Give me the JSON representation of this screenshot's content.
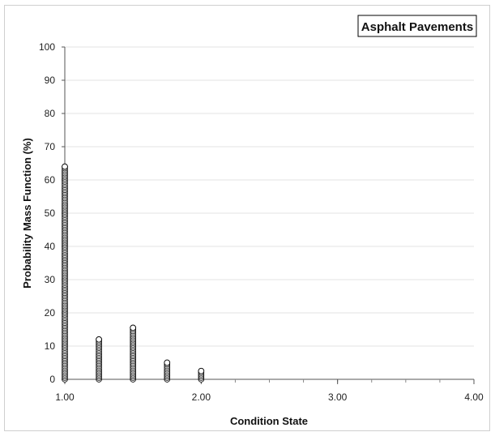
{
  "chart_data": {
    "type": "scatter",
    "title": "",
    "xlabel": "Condition State",
    "ylabel": "Probability Mass Function (%)",
    "xlim": [
      1.0,
      4.0
    ],
    "ylim": [
      0,
      100
    ],
    "x_ticks": [
      "1.00",
      "2.00",
      "3.00",
      "4.00"
    ],
    "y_ticks": [
      "0",
      "10",
      "20",
      "30",
      "40",
      "50",
      "60",
      "70",
      "80",
      "90",
      "100"
    ],
    "grid": true,
    "legend_position": "top-right",
    "marker": "open-circle",
    "series": [
      {
        "name": "Asphalt Pavements",
        "color": "#000000",
        "columns": [
          {
            "x": 1.0,
            "y_max": 64
          },
          {
            "x": 1.25,
            "y_max": 12
          },
          {
            "x": 1.5,
            "y_max": 15.5
          },
          {
            "x": 1.75,
            "y_max": 5
          },
          {
            "x": 2.0,
            "y_max": 2.5
          }
        ]
      }
    ]
  }
}
